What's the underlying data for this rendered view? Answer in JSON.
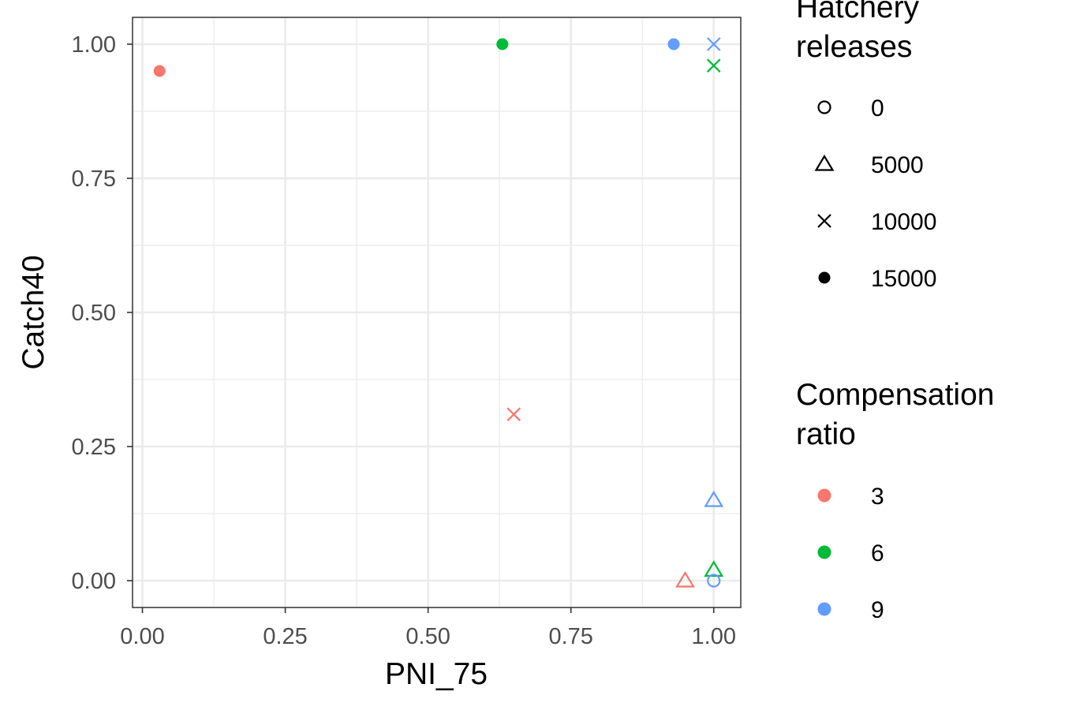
{
  "chart_data": {
    "type": "scatter",
    "xlabel": "PNI_75",
    "ylabel": "Catch40",
    "xlim": [
      -0.0173,
      1.0473
    ],
    "ylim": [
      -0.05,
      1.05
    ],
    "x_ticks": [
      "0.00",
      "0.25",
      "0.50",
      "0.75",
      "1.00"
    ],
    "y_ticks": [
      "0.00",
      "0.25",
      "0.50",
      "0.75",
      "1.00"
    ],
    "grid": true,
    "legend_position": "right",
    "shape_legend": {
      "title_lines": [
        "Hatchery",
        "releases"
      ],
      "items": [
        {
          "label": "0",
          "shape": "circle-open"
        },
        {
          "label": "5000",
          "shape": "triangle-open"
        },
        {
          "label": "10000",
          "shape": "cross"
        },
        {
          "label": "15000",
          "shape": "circle-filled"
        }
      ]
    },
    "color_legend": {
      "title_lines": [
        "Compensation",
        "ratio"
      ],
      "items": [
        {
          "label": "3",
          "color": "#F8766D"
        },
        {
          "label": "6",
          "color": "#00BA38"
        },
        {
          "label": "9",
          "color": "#619CFF"
        }
      ]
    },
    "points": [
      {
        "x": 0.03,
        "y": 0.95,
        "compensation_ratio": "3",
        "hatchery_releases": "15000"
      },
      {
        "x": 0.65,
        "y": 0.31,
        "compensation_ratio": "3",
        "hatchery_releases": "10000"
      },
      {
        "x": 0.95,
        "y": 0.0,
        "compensation_ratio": "3",
        "hatchery_releases": "5000"
      },
      {
        "x": 0.63,
        "y": 1.0,
        "compensation_ratio": "6",
        "hatchery_releases": "15000"
      },
      {
        "x": 1.0,
        "y": 0.96,
        "compensation_ratio": "6",
        "hatchery_releases": "10000"
      },
      {
        "x": 1.0,
        "y": 0.02,
        "compensation_ratio": "6",
        "hatchery_releases": "5000"
      },
      {
        "x": 0.93,
        "y": 1.0,
        "compensation_ratio": "9",
        "hatchery_releases": "15000"
      },
      {
        "x": 1.0,
        "y": 1.0,
        "compensation_ratio": "9",
        "hatchery_releases": "10000"
      },
      {
        "x": 1.0,
        "y": 0.15,
        "compensation_ratio": "9",
        "hatchery_releases": "5000"
      },
      {
        "x": 1.0,
        "y": 0.0,
        "compensation_ratio": "9",
        "hatchery_releases": "0"
      }
    ]
  }
}
